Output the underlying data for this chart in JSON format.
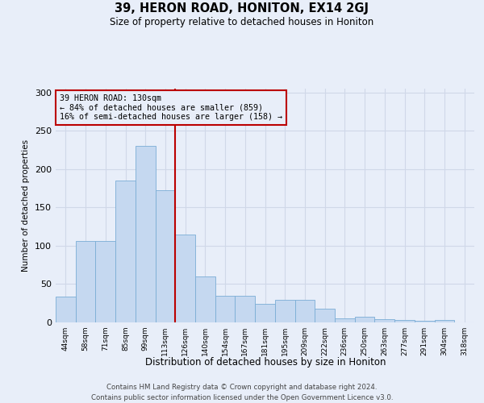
{
  "title": "39, HERON ROAD, HONITON, EX14 2GJ",
  "subtitle": "Size of property relative to detached houses in Honiton",
  "xlabel": "Distribution of detached houses by size in Honiton",
  "ylabel": "Number of detached properties",
  "categories": [
    "44sqm",
    "58sqm",
    "71sqm",
    "85sqm",
    "99sqm",
    "113sqm",
    "126sqm",
    "140sqm",
    "154sqm",
    "167sqm",
    "181sqm",
    "195sqm",
    "209sqm",
    "222sqm",
    "236sqm",
    "250sqm",
    "263sqm",
    "277sqm",
    "291sqm",
    "304sqm",
    "318sqm"
  ],
  "values": [
    34,
    106,
    106,
    185,
    230,
    173,
    115,
    60,
    35,
    35,
    24,
    29,
    29,
    18,
    5,
    7,
    4,
    3,
    2,
    3,
    0
  ],
  "bar_color": "#c5d8f0",
  "bar_edge_color": "#7aadd5",
  "vline_color": "#bb0000",
  "vline_position": 5.5,
  "annotation_text": "39 HERON ROAD: 130sqm\n← 84% of detached houses are smaller (859)\n16% of semi-detached houses are larger (158) →",
  "ylim": [
    0,
    305
  ],
  "yticks": [
    0,
    50,
    100,
    150,
    200,
    250,
    300
  ],
  "bg_color": "#e8eef9",
  "grid_color": "#d0d8e8",
  "footer_line1": "Contains HM Land Registry data © Crown copyright and database right 2024.",
  "footer_line2": "Contains public sector information licensed under the Open Government Licence v3.0."
}
